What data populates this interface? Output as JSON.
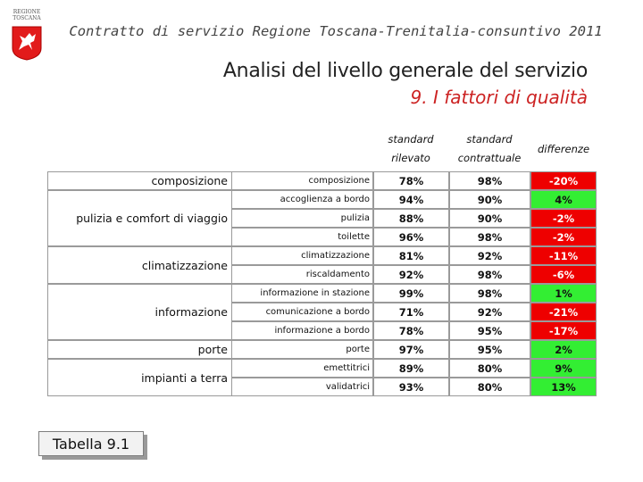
{
  "logo": {
    "text_line1": "REGIONE",
    "text_line2": "TOSCANA",
    "red": "#e21b1b"
  },
  "header": {
    "title": "Contratto di servizio Regione Toscana-Trenitalia-consuntivo 2011"
  },
  "main_title": "Analisi del livello generale del servizio",
  "sub_title": "9. I fattori di qualità",
  "columns": {
    "rilevato_line1": "standard",
    "rilevato_line2": "rilevato",
    "contrattuale_line1": "standard",
    "contrattuale_line2": "contrattuale",
    "differenze": "differenze"
  },
  "categories": [
    {
      "label": "composizione"
    },
    {
      "label": "pulizia e comfort di viaggio"
    },
    {
      "label": "climatizzazione"
    },
    {
      "label": "informazione"
    },
    {
      "label": "porte"
    },
    {
      "label": "impianti a terra"
    }
  ],
  "rows": [
    {
      "sub": "composizione",
      "rilevato": "78%",
      "contrattuale": "98%",
      "diff": "-20%"
    },
    {
      "sub": "accoglienza a bordo",
      "rilevato": "94%",
      "contrattuale": "90%",
      "diff": "4%"
    },
    {
      "sub": "pulizia",
      "rilevato": "88%",
      "contrattuale": "90%",
      "diff": "-2%"
    },
    {
      "sub": "toilette",
      "rilevato": "96%",
      "contrattuale": "98%",
      "diff": "-2%"
    },
    {
      "sub": "climatizzazione",
      "rilevato": "81%",
      "contrattuale": "92%",
      "diff": "-11%"
    },
    {
      "sub": "riscaldamento",
      "rilevato": "92%",
      "contrattuale": "98%",
      "diff": "-6%"
    },
    {
      "sub": "informazione in stazione",
      "rilevato": "99%",
      "contrattuale": "98%",
      "diff": "1%"
    },
    {
      "sub": "comunicazione a bordo",
      "rilevato": "71%",
      "contrattuale": "92%",
      "diff": "-21%"
    },
    {
      "sub": "informazione a bordo",
      "rilevato": "78%",
      "contrattuale": "95%",
      "diff": "-17%"
    },
    {
      "sub": "porte",
      "rilevato": "97%",
      "contrattuale": "95%",
      "diff": "2%"
    },
    {
      "sub": "emettitrici",
      "rilevato": "89%",
      "contrattuale": "80%",
      "diff": "9%"
    },
    {
      "sub": "validatrici",
      "rilevato": "93%",
      "contrattuale": "80%",
      "diff": "13%"
    }
  ],
  "colors": {
    "negative": "#ee0000",
    "positive": "#33ee33",
    "subtitle": "#cc2222"
  },
  "caption": "Tabella 9.1"
}
